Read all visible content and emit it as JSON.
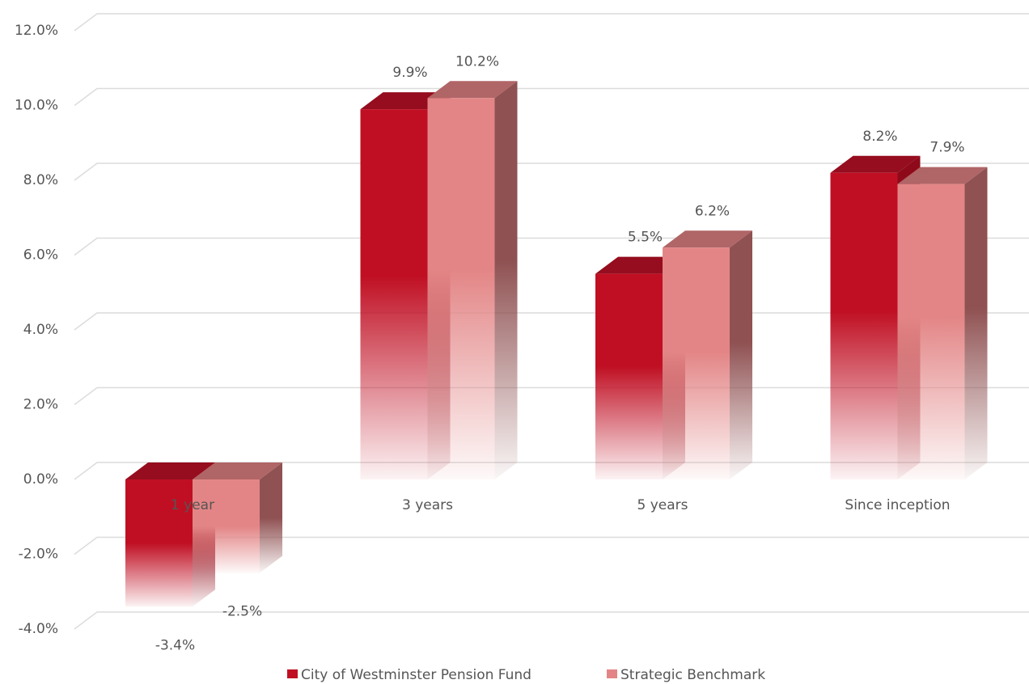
{
  "chart_data": {
    "type": "bar3d",
    "categories": [
      "1 year",
      "3 years",
      "5 years",
      "Since inception"
    ],
    "series": [
      {
        "name": "City of Westminster Pension Fund",
        "color": "#c00f23",
        "side": "#8e0a1a",
        "top": "#950d1e",
        "values": [
          -3.4,
          9.9,
          5.5,
          8.2
        ],
        "value_labels": [
          "-3.4%",
          "9.9%",
          "5.5%",
          "8.2%"
        ]
      },
      {
        "name": "Strategic Benchmark",
        "color": "#e38586",
        "side": "#8f5152",
        "top": "#b06566",
        "values": [
          -2.5,
          10.2,
          6.2,
          7.9
        ],
        "value_labels": [
          "-2.5%",
          "10.2%",
          "6.2%",
          "7.9%"
        ]
      }
    ],
    "ylim": [
      -4,
      12
    ],
    "yticks": [
      {
        "value": -4,
        "label": "-4.0%"
      },
      {
        "value": -2,
        "label": "-2.0%"
      },
      {
        "value": 0,
        "label": "0.0%"
      },
      {
        "value": 2,
        "label": "2.0%"
      },
      {
        "value": 4,
        "label": "4.0%"
      },
      {
        "value": 6,
        "label": "6.0%"
      },
      {
        "value": 8,
        "label": "8.0%"
      },
      {
        "value": 10,
        "label": "10.0%"
      },
      {
        "value": 12,
        "label": "12.0%"
      }
    ],
    "grid": true,
    "legend": "bottom"
  }
}
